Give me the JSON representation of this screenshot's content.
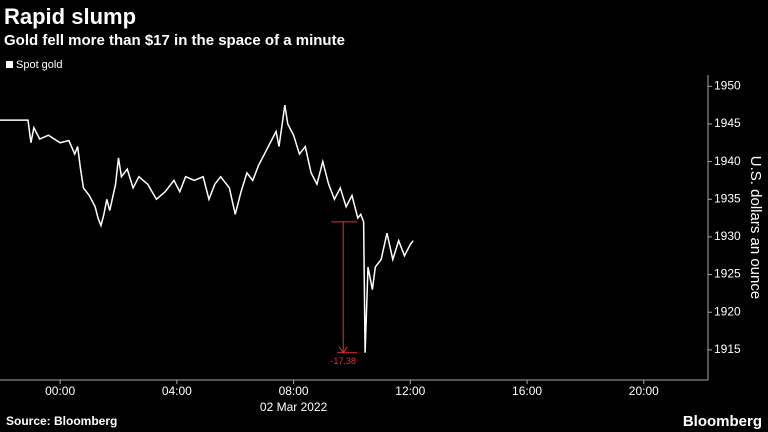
{
  "chart_data": {
    "type": "line",
    "title": "Rapid slump",
    "subtitle": "Gold fell more than $17 in the space of a minute",
    "ylabel": "U.S. dollars an ounce",
    "xlabel": "02 Mar 2022",
    "source": "Source: Bloomberg",
    "brand": "Bloomberg",
    "series": [
      {
        "name": "Spot gold",
        "color": "#ffffff",
        "x": [
          -2.06,
          -1.2,
          -1.1,
          -1.0,
          -0.9,
          -0.7,
          -0.4,
          0,
          0.3,
          0.5,
          0.6,
          0.7,
          0.8,
          1.0,
          1.2,
          1.3,
          1.4,
          1.5,
          1.6,
          1.7,
          1.9,
          2.0,
          2.1,
          2.3,
          2.5,
          2.7,
          3.0,
          3.3,
          3.6,
          3.9,
          4.1,
          4.3,
          4.6,
          4.9,
          5.1,
          5.3,
          5.5,
          5.8,
          6.0,
          6.2,
          6.4,
          6.6,
          6.8,
          7.0,
          7.2,
          7.4,
          7.5,
          7.7,
          7.8,
          8.0,
          8.2,
          8.4,
          8.6,
          8.8,
          9.0,
          9.2,
          9.4,
          9.6,
          9.8,
          10.0,
          10.2,
          10.3,
          10.4,
          10.45,
          10.55,
          10.7,
          10.8,
          11.0,
          11.2,
          11.4,
          11.6,
          11.8,
          12.0,
          12.1
        ],
        "values": [
          1945.5,
          1945.5,
          1945.5,
          1942.5,
          1944.5,
          1943,
          1943.5,
          1942.5,
          1942.8,
          1941,
          1942,
          1939,
          1936.5,
          1935.5,
          1934,
          1932.5,
          1931.5,
          1933,
          1935,
          1933.5,
          1937,
          1940.5,
          1938,
          1939,
          1936.5,
          1938,
          1937,
          1935,
          1936,
          1937.5,
          1936,
          1938,
          1937.5,
          1938,
          1935,
          1937,
          1938,
          1936.5,
          1933,
          1936,
          1938.5,
          1937.5,
          1939.5,
          1941,
          1942.5,
          1944,
          1942,
          1947.5,
          1945,
          1943.5,
          1941,
          1942,
          1938.5,
          1937,
          1940,
          1937,
          1935,
          1936.5,
          1934,
          1935.5,
          1932.5,
          1933,
          1932,
          1914.62,
          1926,
          1923,
          1926,
          1927,
          1930.5,
          1927,
          1929.5,
          1927.5,
          1929,
          1929.5
        ]
      }
    ],
    "annotation": {
      "label": "-17.38",
      "value": -17.38,
      "from": 1932,
      "x": 9.7,
      "color": "#e03030"
    },
    "xlim": [
      -2.06,
      22.2
    ],
    "xticks": [
      {
        "value": 0,
        "label": "00:00"
      },
      {
        "value": 4,
        "label": "04:00"
      },
      {
        "value": 8,
        "label": "08:00"
      },
      {
        "value": 12,
        "label": "12:00"
      },
      {
        "value": 16,
        "label": "16:00"
      },
      {
        "value": 20,
        "label": "20:00"
      }
    ],
    "ylim": [
      1911,
      1951.5
    ],
    "yticks": [
      1915,
      1920,
      1925,
      1930,
      1935,
      1940,
      1945,
      1950
    ],
    "grid": false
  }
}
